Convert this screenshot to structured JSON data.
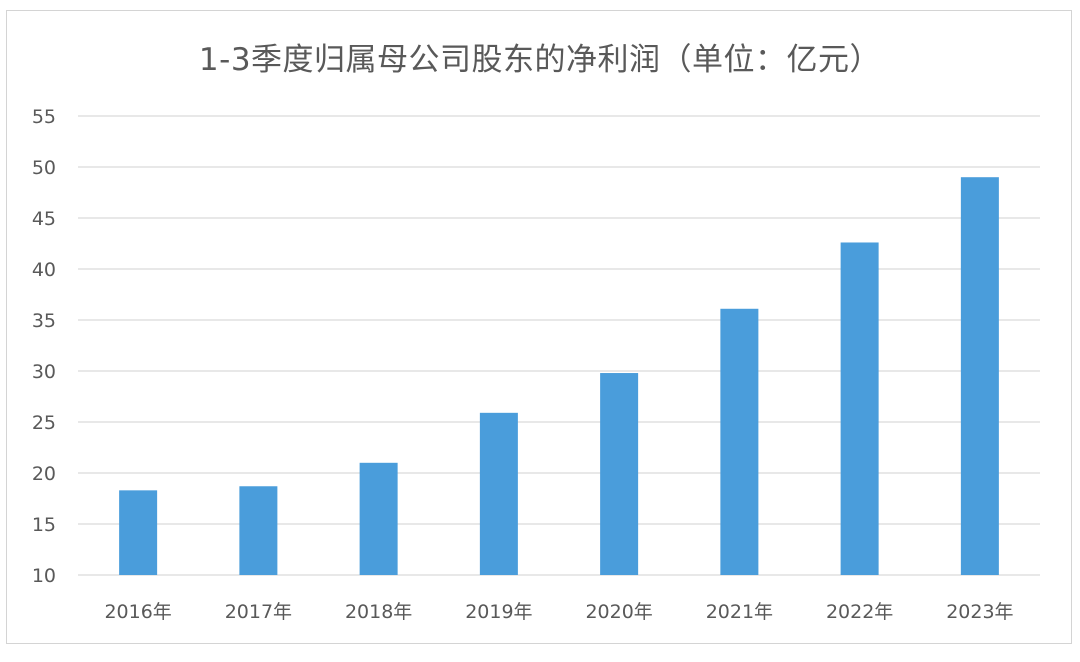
{
  "chart_data": {
    "type": "bar",
    "title": "1-3季度归属母公司股东的净利润（单位：亿元）",
    "categories": [
      "2016年",
      "2017年",
      "2018年",
      "2019年",
      "2020年",
      "2021年",
      "2022年",
      "2023年"
    ],
    "values": [
      18.3,
      18.7,
      21.0,
      25.9,
      29.8,
      36.1,
      42.6,
      49.0
    ],
    "xlabel": "",
    "ylabel": "",
    "ylim": [
      10,
      55
    ],
    "yticks": [
      10,
      15,
      20,
      25,
      30,
      35,
      40,
      45,
      50,
      55
    ],
    "grid": true,
    "legend": "none",
    "bar_color": "#4a9ddb",
    "grid_color": "#d9d9d9"
  }
}
